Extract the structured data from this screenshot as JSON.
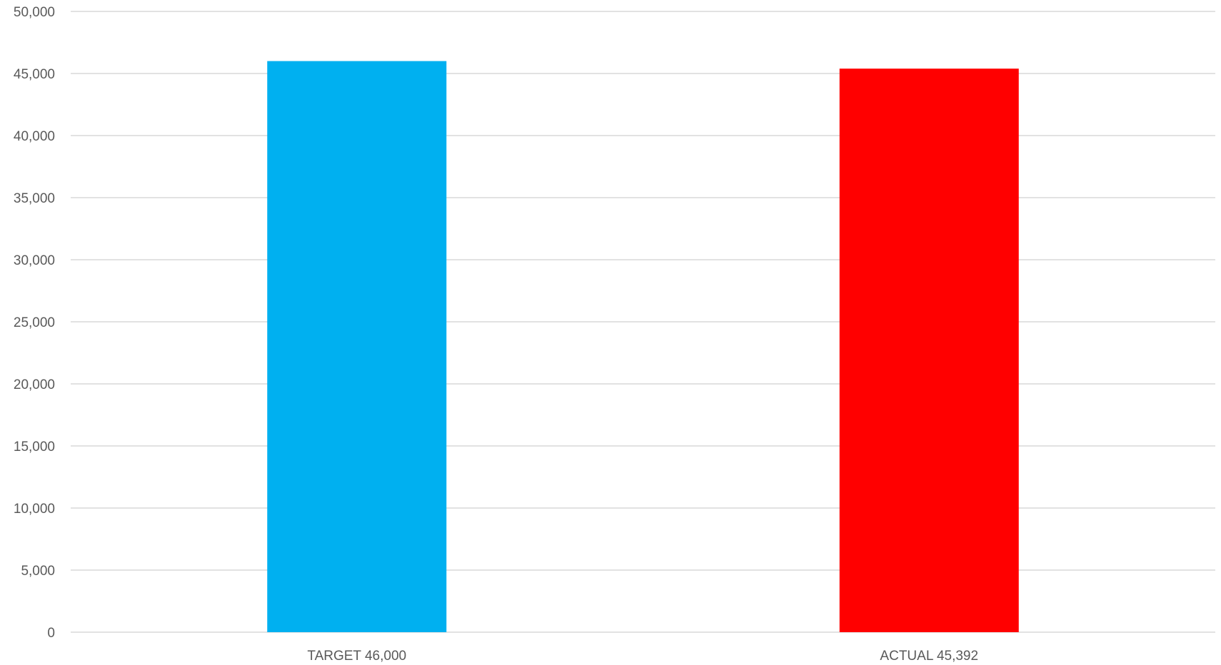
{
  "chart_data": {
    "type": "bar",
    "categories": [
      "TARGET 46,000",
      "ACTUAL 45,392"
    ],
    "values": [
      46000,
      45392
    ],
    "colors": [
      "#00b0f0",
      "#ff0000"
    ],
    "title": "",
    "xlabel": "",
    "ylabel": "",
    "ylim": [
      0,
      50000
    ],
    "ytick_step": 5000,
    "yticks": [
      "0",
      "5,000",
      "10,000",
      "15,000",
      "20,000",
      "25,000",
      "30,000",
      "35,000",
      "40,000",
      "45,000",
      "50,000"
    ],
    "grid": true,
    "legend": "none"
  }
}
